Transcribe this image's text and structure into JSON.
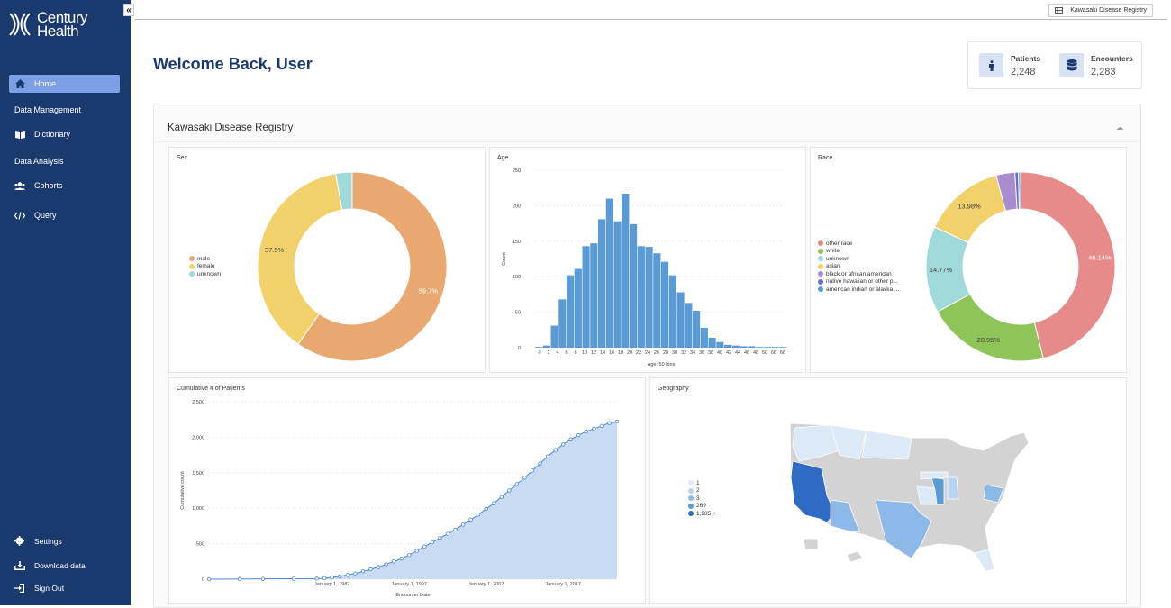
{
  "brand": {
    "name_line1": "Century",
    "name_line2": "Health"
  },
  "sidebar": {
    "home": "Home",
    "data_management": "Data Management",
    "dictionary": "Dictionary",
    "data_analysis": "Data Analysis",
    "cohorts": "Cohorts",
    "query": "Query",
    "settings": "Settings",
    "download": "Download data",
    "signout": "Sign Out"
  },
  "topbar": {
    "registry": "Kawasaki Disease Registry"
  },
  "welcome": "Welcome Back, User",
  "stats": {
    "patients_label": "Patients",
    "patients_value": "2,248",
    "encounters_label": "Encounters",
    "encounters_value": "2,283"
  },
  "dashboard": {
    "title": "Kawasaki Disease Registry"
  },
  "colors": {
    "sidebar": "#1a3a6e",
    "active": "#7c9fe6",
    "accent": "#4a86d8"
  },
  "chart_data": [
    {
      "type": "pie",
      "title": "Sex",
      "labels": [
        "male",
        "female",
        "unknown"
      ],
      "values": [
        59.7,
        37.5,
        2.8
      ],
      "data_labels": [
        "59.7%",
        "37.5%",
        ""
      ],
      "colors": [
        "#e8a86f",
        "#f2d16b",
        "#9fd9d9"
      ]
    },
    {
      "type": "bar",
      "title": "Age",
      "xlabel": "Age: 50 bins",
      "ylabel": "Count",
      "ylim": [
        0,
        250
      ],
      "yticks": [
        "0",
        "50",
        "100",
        "150",
        "200",
        "250"
      ],
      "xticks": [
        "0",
        "2",
        "4",
        "6",
        "8",
        "10",
        "12",
        "14",
        "16",
        "18",
        "20",
        "22",
        "24",
        "26",
        "28",
        "30",
        "32",
        "34",
        "36",
        "38",
        "40",
        "42",
        "44",
        "46",
        "48",
        "50",
        "66",
        "68"
      ],
      "values": [
        1,
        3,
        31,
        68,
        102,
        111,
        143,
        147,
        181,
        210,
        178,
        217,
        174,
        143,
        142,
        133,
        121,
        102,
        78,
        63,
        52,
        28,
        14,
        8,
        4,
        3,
        2,
        2,
        1,
        1,
        1,
        1
      ]
    },
    {
      "type": "pie",
      "title": "Race",
      "labels": [
        "other race",
        "white",
        "unknown",
        "asian",
        "black or african american",
        "native hawaiian or other p...",
        "american indian or alaska ..."
      ],
      "values": [
        46.14,
        20.95,
        14.77,
        13.98,
        3.2,
        0.6,
        0.36
      ],
      "data_labels": [
        "46.14%",
        "20.95%",
        "14.77%",
        "13.98%",
        "",
        "",
        ""
      ],
      "colors": [
        "#e68a8a",
        "#8fc458",
        "#9fd9d9",
        "#f2d16b",
        "#a98ccf",
        "#6a6ec9",
        "#5b9bd5"
      ]
    },
    {
      "type": "area",
      "title": "Cumulative # of Patients",
      "xlabel": "Encounter Date",
      "ylabel": "Cumulative count",
      "ylim": [
        0,
        2500
      ],
      "yticks": [
        "0",
        "500",
        "1,000",
        "1,500",
        "2,000",
        "2,500"
      ],
      "xticks": [
        "January 1, 1987",
        "January 1, 1997",
        "January 1, 2007",
        "January 1, 2017"
      ],
      "x": [
        1971,
        1975,
        1978,
        1982,
        1985,
        1986,
        1987,
        1988,
        1989,
        1990,
        1991,
        1992,
        1993,
        1994,
        1995,
        1996,
        1997,
        1998,
        1999,
        2000,
        2001,
        2002,
        2003,
        2004,
        2005,
        2006,
        2007,
        2008,
        2009,
        2010,
        2011,
        2012,
        2013,
        2014,
        2015,
        2016,
        2017,
        2018,
        2019,
        2020,
        2021,
        2022,
        2023,
        2024
      ],
      "values": [
        0,
        2,
        4,
        6,
        8,
        15,
        25,
        40,
        60,
        80,
        110,
        140,
        170,
        210,
        250,
        290,
        340,
        400,
        460,
        520,
        580,
        640,
        700,
        770,
        840,
        910,
        990,
        1070,
        1160,
        1250,
        1340,
        1430,
        1530,
        1630,
        1730,
        1820,
        1900,
        1970,
        2030,
        2080,
        2120,
        2160,
        2200,
        2220
      ]
    },
    {
      "type": "table",
      "title": "Geography",
      "legend": [
        "1",
        "2",
        "3",
        "269",
        "1,985 +"
      ],
      "colors": [
        "#dce9f7",
        "#b8d4f0",
        "#8db9e8",
        "#5b9bd5",
        "#2f6bc4"
      ]
    }
  ]
}
